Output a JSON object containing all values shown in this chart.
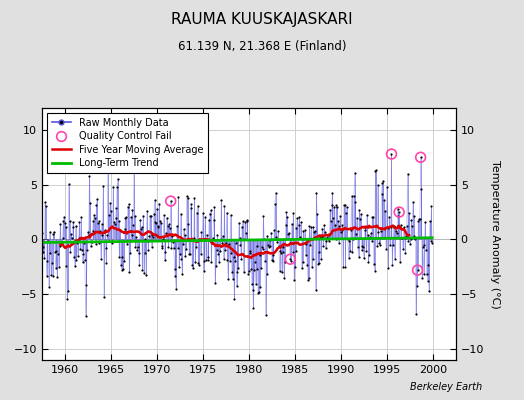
{
  "title": "RAUMA KUUSKAJASKARI",
  "subtitle": "61.139 N, 21.368 E (Finland)",
  "ylabel": "Temperature Anomaly (°C)",
  "credit": "Berkeley Earth",
  "ylim": [
    -11,
    12
  ],
  "yticks": [
    -10,
    -5,
    0,
    5,
    10
  ],
  "xlim": [
    1957.5,
    2002.5
  ],
  "xticks": [
    1960,
    1965,
    1970,
    1975,
    1980,
    1985,
    1990,
    1995,
    2000
  ],
  "bg_color": "#e0e0e0",
  "plot_bg": "#ffffff",
  "raw_color": "#5555dd",
  "ma_color": "#dd0000",
  "trend_color": "#00bb00",
  "qc_color": "#ff44aa",
  "seed": 17,
  "n_months": 516,
  "start_year": 1957.0,
  "trend_slope": 0.00085,
  "trend_intercept": -0.28,
  "ma_window": 60
}
